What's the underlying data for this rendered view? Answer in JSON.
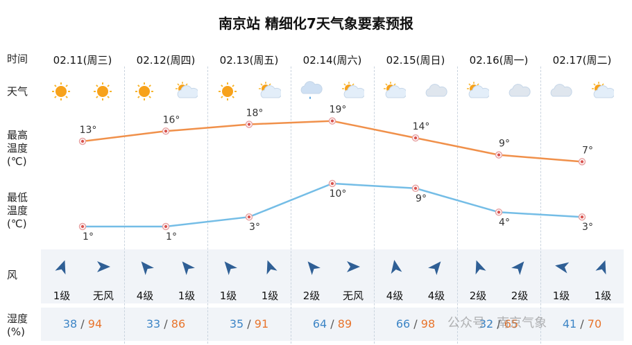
{
  "title": "南京站 精细化7天气象要素预报",
  "row_labels": {
    "time": "时间",
    "weather": "天气",
    "high": [
      "最高",
      "温度",
      "(℃)"
    ],
    "low": [
      "最低",
      "温度",
      "(℃)"
    ],
    "wind": "风",
    "humidity": [
      "湿度",
      "(%)"
    ]
  },
  "days": [
    {
      "date": "02.11(周三)",
      "icons": [
        "sun-icon",
        "sun-icon"
      ],
      "wind": [
        {
          "dir": 200,
          "level": "1级"
        },
        {
          "dir": 270,
          "level": "无风"
        }
      ],
      "hum_low": "38",
      "hum_high": "94"
    },
    {
      "date": "02.12(周四)",
      "icons": [
        "sun-icon",
        "partly-cloudy-icon"
      ],
      "wind": [
        {
          "dir": 140,
          "level": "4级"
        },
        {
          "dir": 140,
          "level": "1级"
        }
      ],
      "hum_low": "33",
      "hum_high": "86"
    },
    {
      "date": "02.13(周五)",
      "icons": [
        "sun-icon",
        "partly-cloudy-icon"
      ],
      "wind": [
        {
          "dir": 140,
          "level": "1级"
        },
        {
          "dir": 160,
          "level": "1级"
        }
      ],
      "hum_low": "35",
      "hum_high": "91"
    },
    {
      "date": "02.14(周六)",
      "icons": [
        "rain-cloud-icon",
        "partly-cloudy-icon"
      ],
      "wind": [
        {
          "dir": 140,
          "level": "2级"
        },
        {
          "dir": 270,
          "level": "无风"
        }
      ],
      "hum_low": "64",
      "hum_high": "89"
    },
    {
      "date": "02.15(周日)",
      "icons": [
        "partly-cloudy-icon",
        "cloud-icon"
      ],
      "wind": [
        {
          "dir": 170,
          "level": "4级"
        },
        {
          "dir": 220,
          "level": "4级"
        }
      ],
      "hum_low": "66",
      "hum_high": "98"
    },
    {
      "date": "02.16(周一)",
      "icons": [
        "partly-cloudy-icon",
        "cloud-icon"
      ],
      "wind": [
        {
          "dir": 160,
          "level": "2级"
        },
        {
          "dir": 220,
          "level": "2级"
        }
      ],
      "hum_low": "32",
      "hum_high": "65"
    },
    {
      "date": "02.17(周二)",
      "icons": [
        "cloud-icon",
        "partly-cloudy-icon"
      ],
      "wind": [
        {
          "dir": 100,
          "level": "1级"
        },
        {
          "dir": 200,
          "level": "1级"
        }
      ],
      "hum_low": "41",
      "hum_high": "70"
    }
  ],
  "humidity_separator": "/",
  "watermark": "公众号 · 南京气象",
  "colors": {
    "high_line": "#f0904a",
    "low_line": "#74bde6",
    "point": "#d9534f",
    "arrow": "#2f5f95",
    "hum_low": "#3d85c6",
    "hum_high": "#e8742c"
  },
  "chart_data": {
    "type": "line",
    "categories": [
      "02.11(周三)",
      "02.12(周四)",
      "02.13(周五)",
      "02.14(周六)",
      "02.15(周日)",
      "02.16(周一)",
      "02.17(周二)"
    ],
    "series": [
      {
        "name": "最高温度",
        "values": [
          13,
          16,
          18,
          19,
          14,
          9,
          7
        ],
        "labels": [
          "13°",
          "16°",
          "18°",
          "19°",
          "14°",
          "9°",
          "7°"
        ]
      },
      {
        "name": "最低温度",
        "values": [
          1,
          1,
          3,
          10,
          9,
          4,
          3
        ],
        "labels": [
          "1°",
          "1°",
          "3°",
          "10°",
          "9°",
          "4°",
          "3°"
        ]
      }
    ],
    "ylabel": "℃"
  }
}
